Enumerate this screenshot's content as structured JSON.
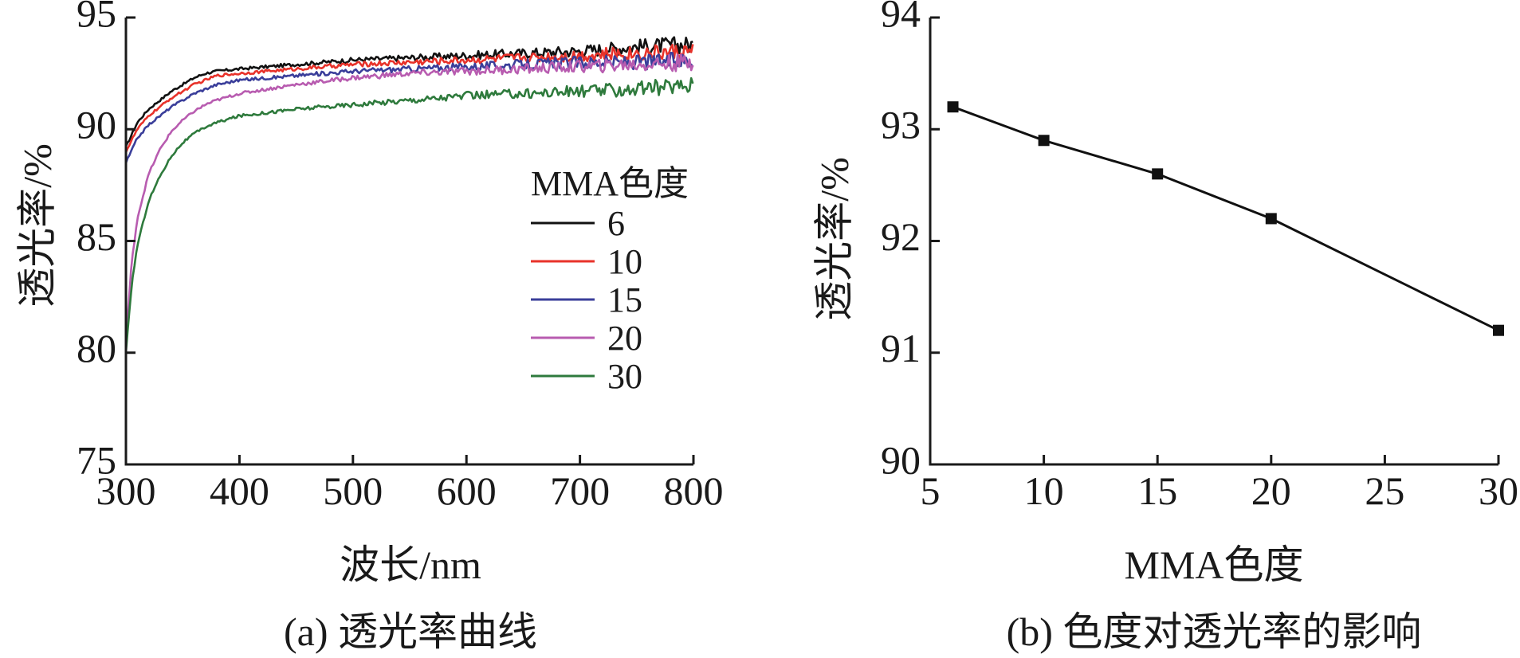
{
  "chart_data": [
    {
      "type": "line",
      "caption": "(a) 透光率曲线",
      "xlabel": "波长/nm",
      "ylabel": "透光率/%",
      "xlim": [
        300,
        800
      ],
      "ylim": [
        75,
        95
      ],
      "x_ticks": [
        "300",
        "400",
        "500",
        "600",
        "700",
        "800"
      ],
      "y_ticks": [
        "75",
        "80",
        "85",
        "90",
        "95"
      ],
      "legend_title": "MMA色度",
      "legend_position": "center-right",
      "series": [
        {
          "name": "6",
          "color": "#111111",
          "x": [
            300,
            310,
            320,
            330,
            340,
            350,
            360,
            370,
            380,
            400,
            450,
            500,
            550,
            600,
            650,
            700,
            750,
            800
          ],
          "values": [
            89.2,
            90.3,
            90.9,
            91.3,
            91.7,
            92.0,
            92.3,
            92.5,
            92.6,
            92.7,
            92.9,
            93.1,
            93.2,
            93.3,
            93.4,
            93.5,
            93.7,
            93.8
          ]
        },
        {
          "name": "10",
          "color": "#e8322a",
          "x": [
            300,
            310,
            320,
            330,
            340,
            350,
            360,
            370,
            380,
            400,
            450,
            500,
            550,
            600,
            650,
            700,
            750,
            800
          ],
          "values": [
            89.0,
            90.0,
            90.6,
            91.0,
            91.4,
            91.7,
            92.0,
            92.2,
            92.4,
            92.5,
            92.7,
            92.9,
            93.0,
            93.1,
            93.2,
            93.3,
            93.4,
            93.5
          ]
        },
        {
          "name": "15",
          "color": "#3a3e9a",
          "x": [
            300,
            310,
            320,
            330,
            340,
            350,
            360,
            370,
            380,
            400,
            450,
            500,
            550,
            600,
            650,
            700,
            750,
            800
          ],
          "values": [
            88.5,
            89.6,
            90.2,
            90.6,
            91.0,
            91.3,
            91.6,
            91.8,
            92.0,
            92.2,
            92.4,
            92.6,
            92.7,
            92.8,
            92.9,
            93.0,
            93.0,
            93.1
          ]
        },
        {
          "name": "20",
          "color": "#b85cb0",
          "x": [
            300,
            305,
            310,
            320,
            330,
            340,
            350,
            360,
            370,
            380,
            400,
            450,
            500,
            550,
            600,
            650,
            700,
            750,
            800
          ],
          "values": [
            80.5,
            84.0,
            86.0,
            88.0,
            89.1,
            89.9,
            90.4,
            90.8,
            91.1,
            91.3,
            91.6,
            92.0,
            92.3,
            92.5,
            92.6,
            92.7,
            92.8,
            92.9,
            93.0
          ]
        },
        {
          "name": "30",
          "color": "#2e7a3c",
          "x": [
            300,
            305,
            310,
            320,
            330,
            340,
            350,
            360,
            370,
            380,
            400,
            450,
            500,
            550,
            600,
            650,
            700,
            750,
            800
          ],
          "values": [
            80.0,
            83.0,
            84.8,
            86.8,
            87.9,
            88.8,
            89.4,
            89.8,
            90.1,
            90.3,
            90.6,
            90.9,
            91.1,
            91.3,
            91.5,
            91.6,
            91.7,
            91.8,
            92.0
          ]
        }
      ]
    },
    {
      "type": "line",
      "caption": "(b) 色度对透光率的影响",
      "xlabel": "MMA色度",
      "ylabel": "透光率/%",
      "xlim": [
        5,
        30
      ],
      "ylim": [
        90,
        94
      ],
      "x_ticks": [
        "5",
        "10",
        "15",
        "20",
        "25",
        "30"
      ],
      "y_ticks": [
        "90",
        "91",
        "92",
        "93",
        "94"
      ],
      "series": [
        {
          "color": "#111111",
          "marker": "square",
          "x": [
            6,
            10,
            15,
            20,
            30
          ],
          "values": [
            93.2,
            92.9,
            92.6,
            92.2,
            91.2
          ]
        }
      ]
    }
  ]
}
